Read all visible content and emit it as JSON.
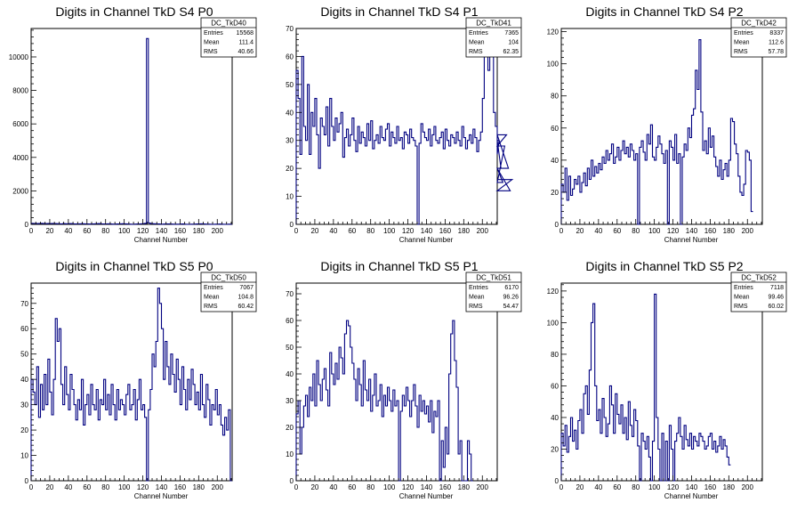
{
  "colors": {
    "line": "#000080",
    "axis": "#000000",
    "background": "#ffffff"
  },
  "chart_data": [
    {
      "type": "line",
      "style": "histogram",
      "title": "Digits in Channel TkD S4 P0",
      "xlabel": "Channel Number",
      "ylabel": "",
      "xlim": [
        0,
        216
      ],
      "ylim": [
        0,
        11700
      ],
      "xticks": [
        0,
        20,
        40,
        60,
        80,
        100,
        120,
        140,
        160,
        180,
        200
      ],
      "yticks": [
        0,
        2000,
        4000,
        6000,
        8000,
        10000
      ],
      "stats": {
        "name": "DC_TkD40",
        "entries": "15568",
        "mean": "111.4",
        "rms": "40.66"
      },
      "grid": false,
      "legend": "top-right",
      "x_start": 0,
      "bin_width": 2,
      "values": [
        60,
        55,
        50,
        45,
        55,
        60,
        50,
        40,
        45,
        50,
        40,
        55,
        45,
        40,
        35,
        30,
        25,
        40,
        35,
        30,
        40,
        45,
        30,
        25,
        20,
        25,
        30,
        35,
        30,
        25,
        20,
        15,
        20,
        25,
        30,
        35,
        40,
        30,
        25,
        20,
        25,
        30,
        20,
        15,
        10,
        15,
        20,
        25,
        30,
        35,
        30,
        20,
        15,
        10,
        5,
        10,
        15,
        20,
        25,
        30,
        40,
        60,
        11100,
        80,
        40,
        35,
        30,
        25,
        20,
        15,
        10,
        15,
        20,
        25,
        20,
        15,
        10,
        5,
        8,
        10,
        15,
        20,
        10,
        5,
        3,
        5,
        8,
        10,
        15,
        20,
        25,
        30,
        20,
        15,
        10,
        8,
        5,
        3,
        5,
        8,
        10,
        15,
        10,
        5,
        3,
        5,
        8,
        10
      ]
    },
    {
      "type": "line",
      "style": "histogram",
      "title": "Digits in Channel TkD S4 P1",
      "xlabel": "Channel Number",
      "ylabel": "",
      "xlim": [
        0,
        216
      ],
      "ylim": [
        0,
        70
      ],
      "xticks": [
        0,
        20,
        40,
        60,
        80,
        100,
        120,
        140,
        160,
        180,
        200
      ],
      "yticks": [
        0,
        10,
        20,
        30,
        40,
        50,
        60,
        70
      ],
      "stats": {
        "name": "DC_TkD41",
        "entries": "7365",
        "mean": "104",
        "rms": "62.35"
      },
      "grid": false,
      "legend": "top-right",
      "x_start": 0,
      "bin_width": 2,
      "values": [
        55,
        45,
        25,
        60,
        35,
        30,
        50,
        25,
        40,
        35,
        45,
        32,
        20,
        38,
        35,
        32,
        42,
        28,
        45,
        35,
        30,
        38,
        33,
        36,
        40,
        24,
        31,
        34,
        28,
        32,
        38,
        30,
        26,
        35,
        29,
        33,
        31,
        28,
        36,
        30,
        37,
        27,
        30,
        32,
        29,
        35,
        31,
        30,
        34,
        36,
        28,
        33,
        31,
        29,
        35,
        30,
        31,
        27,
        33,
        32,
        29,
        34,
        31,
        30,
        28,
        0,
        29,
        36,
        33,
        31,
        30,
        34,
        28,
        32,
        35,
        30,
        29,
        31,
        33,
        27,
        34,
        30,
        28,
        32,
        31,
        29,
        33,
        30,
        28,
        35,
        31,
        27,
        30,
        32,
        29,
        34,
        31,
        26,
        30,
        33,
        45,
        60,
        65,
        55,
        70,
        60,
        40,
        35,
        25,
        30,
        20,
        15,
        28,
        32,
        20,
        12,
        16
      ]
    },
    {
      "type": "line",
      "style": "histogram",
      "title": "Digits in Channel TkD S4 P2",
      "xlabel": "Channel Number",
      "ylabel": "",
      "xlim": [
        0,
        216
      ],
      "ylim": [
        0,
        122
      ],
      "xticks": [
        0,
        20,
        40,
        60,
        80,
        100,
        120,
        140,
        160,
        180,
        200
      ],
      "yticks": [
        0,
        20,
        40,
        60,
        80,
        100,
        120
      ],
      "stats": {
        "name": "DC_TkD42",
        "entries": "8337",
        "mean": "112.6",
        "rms": "57.78"
      },
      "grid": false,
      "legend": "top-right",
      "x_start": 0,
      "bin_width": 2,
      "values": [
        25,
        20,
        35,
        15,
        30,
        18,
        22,
        28,
        25,
        30,
        20,
        26,
        32,
        24,
        35,
        28,
        40,
        30,
        36,
        32,
        38,
        34,
        42,
        38,
        46,
        40,
        44,
        50,
        38,
        42,
        48,
        40,
        46,
        52,
        44,
        48,
        42,
        50,
        46,
        40,
        44,
        0,
        48,
        52,
        45,
        40,
        56,
        50,
        62,
        42,
        40,
        48,
        55,
        50,
        44,
        38,
        46,
        0,
        52,
        48,
        40,
        56,
        38,
        44,
        0,
        42,
        50,
        46,
        60,
        54,
        68,
        72,
        96,
        84,
        115,
        70,
        46,
        52,
        44,
        60,
        48,
        55,
        42,
        36,
        30,
        40,
        28,
        34,
        38,
        30,
        40,
        66,
        64,
        50,
        44,
        30,
        20,
        18,
        25,
        46,
        45,
        40,
        8
      ]
    },
    {
      "type": "line",
      "style": "histogram",
      "title": "Digits in Channel TkD S5 P0",
      "xlabel": "Channel Number",
      "ylabel": "",
      "xlim": [
        0,
        216
      ],
      "ylim": [
        0,
        78
      ],
      "xticks": [
        0,
        20,
        40,
        60,
        80,
        100,
        120,
        140,
        160,
        180,
        200
      ],
      "yticks": [
        0,
        10,
        20,
        30,
        40,
        50,
        60,
        70
      ],
      "stats": {
        "name": "DC_TkD50",
        "entries": "7067",
        "mean": "104.8",
        "rms": "60.42"
      },
      "grid": false,
      "legend": "top-right",
      "x_start": 0,
      "bin_width": 2,
      "values": [
        40,
        35,
        30,
        45,
        25,
        38,
        28,
        42,
        30,
        48,
        35,
        26,
        40,
        64,
        55,
        60,
        38,
        30,
        45,
        34,
        28,
        42,
        36,
        30,
        24,
        32,
        28,
        40,
        22,
        30,
        34,
        26,
        38,
        30,
        28,
        36,
        24,
        32,
        30,
        40,
        28,
        34,
        26,
        38,
        30,
        24,
        36,
        28,
        32,
        30,
        26,
        34,
        38,
        28,
        30,
        36,
        24,
        32,
        40,
        28,
        30,
        25,
        0,
        28,
        36,
        50,
        45,
        55,
        76,
        70,
        60,
        40,
        55,
        45,
        38,
        50,
        42,
        35,
        48,
        40,
        30,
        45,
        36,
        28,
        40,
        32,
        44,
        38,
        30,
        35,
        28,
        42,
        30,
        25,
        38,
        32,
        22,
        30,
        28,
        36,
        26,
        30,
        22,
        18,
        25,
        20,
        28,
        0
      ]
    },
    {
      "type": "line",
      "style": "histogram",
      "title": "Digits in Channel TkD S5 P1",
      "xlabel": "Channel Number",
      "ylabel": "",
      "xlim": [
        0,
        216
      ],
      "ylim": [
        0,
        74
      ],
      "xticks": [
        0,
        20,
        40,
        60,
        80,
        100,
        120,
        140,
        160,
        180,
        200
      ],
      "yticks": [
        0,
        10,
        20,
        30,
        40,
        50,
        60,
        70
      ],
      "stats": {
        "name": "DC_TkD51",
        "entries": "6170",
        "mean": "96.26",
        "rms": "54.47"
      },
      "grid": false,
      "legend": "top-right",
      "x_start": 0,
      "bin_width": 2,
      "values": [
        25,
        30,
        10,
        20,
        28,
        32,
        24,
        35,
        30,
        40,
        28,
        45,
        36,
        30,
        38,
        42,
        34,
        28,
        48,
        40,
        36,
        44,
        38,
        50,
        46,
        40,
        55,
        60,
        58,
        50,
        44,
        38,
        30,
        42,
        36,
        28,
        45,
        34,
        30,
        38,
        26,
        32,
        40,
        28,
        30,
        36,
        24,
        32,
        28,
        35,
        30,
        26,
        34,
        28,
        30,
        0,
        26,
        32,
        28,
        35,
        30,
        24,
        30,
        36,
        28,
        20,
        32,
        26,
        30,
        25,
        28,
        22,
        30,
        18,
        26,
        24,
        30,
        0,
        15,
        5,
        20,
        10,
        40,
        55,
        60,
        45,
        35,
        10,
        15,
        0,
        0,
        0,
        15,
        10,
        0
      ]
    },
    {
      "type": "line",
      "style": "histogram",
      "title": "Digits in Channel TkD S5 P2",
      "xlabel": "Channel Number",
      "ylabel": "",
      "xlim": [
        0,
        216
      ],
      "ylim": [
        0,
        125
      ],
      "xticks": [
        0,
        20,
        40,
        60,
        80,
        100,
        120,
        140,
        160,
        180,
        200
      ],
      "yticks": [
        0,
        20,
        40,
        60,
        80,
        100,
        120
      ],
      "stats": {
        "name": "DC_TkD52",
        "entries": "7118",
        "mean": "99.46",
        "rms": "60.02"
      },
      "grid": false,
      "legend": "top-right",
      "x_start": 0,
      "bin_width": 2,
      "values": [
        30,
        22,
        35,
        18,
        28,
        40,
        25,
        32,
        20,
        38,
        45,
        30,
        55,
        60,
        42,
        70,
        100,
        112,
        60,
        38,
        45,
        30,
        52,
        40,
        28,
        36,
        60,
        48,
        30,
        55,
        42,
        36,
        48,
        30,
        40,
        26,
        50,
        35,
        28,
        45,
        38,
        22,
        0,
        30,
        25,
        20,
        28,
        15,
        0,
        25,
        118,
        40,
        20,
        0,
        30,
        0,
        25,
        0,
        35,
        20,
        0,
        25,
        30,
        40,
        28,
        20,
        35,
        26,
        22,
        30,
        20,
        28,
        25,
        22,
        30,
        28,
        25,
        20,
        22,
        28,
        30,
        20,
        25,
        18,
        22,
        28,
        20,
        26,
        22,
        15,
        10
      ]
    }
  ]
}
